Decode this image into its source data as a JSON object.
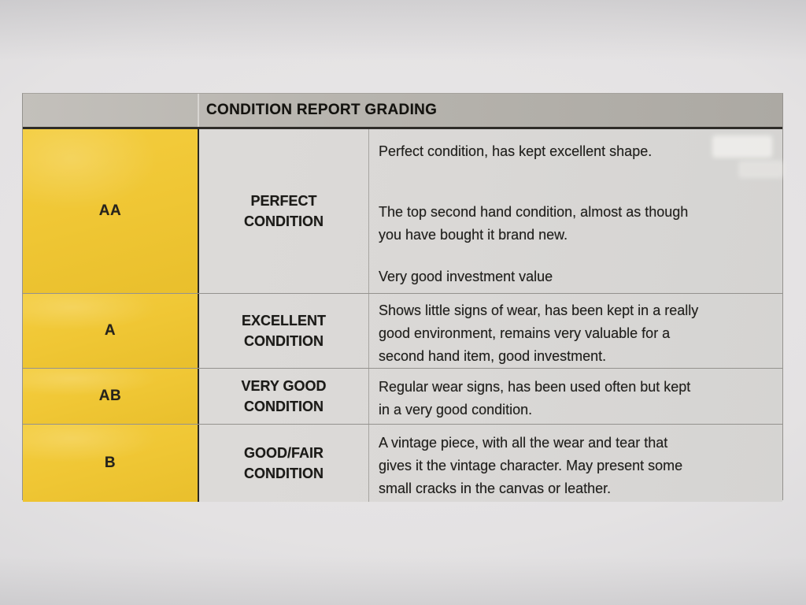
{
  "table": {
    "title": "CONDITION REPORT GRADING",
    "rows": [
      {
        "grade": "AA",
        "condition": "PERFECT\nCONDITION",
        "description": [
          "Perfect condition, has kept excellent shape.",
          "The top second hand condition, almost as though\nyou have bought it brand new.",
          "Very good investment value"
        ]
      },
      {
        "grade": "A",
        "condition": "EXCELLENT\nCONDITION",
        "description": [
          "Shows little signs of wear, has been kept in a really\ngood environment, remains very valuable for a\nsecond hand item, good investment."
        ]
      },
      {
        "grade": "AB",
        "condition": "VERY GOOD\nCONDITION",
        "description": [
          "Regular wear signs, has been used often but kept\nin a very good condition."
        ]
      },
      {
        "grade": "B",
        "condition": "GOOD/FAIR\nCONDITION",
        "description": [
          "A vintage piece, with all the wear and tear that\ngives it the vintage character. May present some\nsmall cracks in the canvas or leather."
        ]
      }
    ]
  },
  "colors": {
    "paper": "#eae8e9",
    "paper_edge": "#c6c6c8",
    "header_gray": "#b8b5af",
    "grade_yellow": "#f0c735",
    "cell_gray": "#dad8d6",
    "ink": "#1f1e1c",
    "dark_border": "#2e2c28",
    "light_border": "#94928e"
  }
}
